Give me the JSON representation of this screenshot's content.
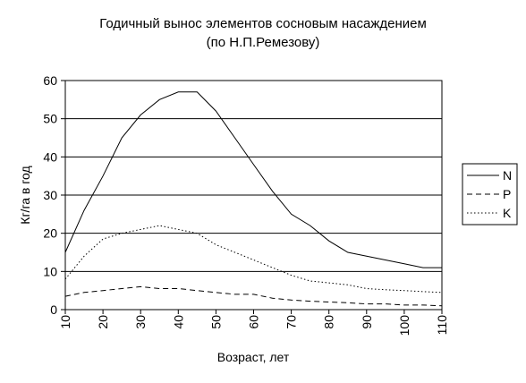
{
  "chart_data": {
    "type": "line",
    "title": "Годичный вынос элементов сосновым насаждением",
    "subtitle": "(по Н.П.Ремезову)",
    "xlabel": "Возраст, лет",
    "ylabel": "Кг/га в год",
    "xlim": [
      10,
      110
    ],
    "ylim": [
      0,
      60
    ],
    "x_ticks": [
      "10",
      "20",
      "30",
      "40",
      "50",
      "60",
      "70",
      "80",
      "90",
      "100",
      "110"
    ],
    "y_ticks": [
      "0",
      "10",
      "20",
      "30",
      "40",
      "50",
      "60"
    ],
    "grid": "horizontal",
    "legend_position": "right",
    "x": [
      10,
      15,
      20,
      25,
      30,
      35,
      40,
      45,
      50,
      55,
      60,
      65,
      70,
      75,
      80,
      85,
      90,
      95,
      100,
      105,
      110
    ],
    "series": [
      {
        "name": "N",
        "style": "solid",
        "color": "#000000",
        "values": [
          15,
          26,
          35,
          45,
          51,
          55,
          57,
          57,
          52,
          45,
          38,
          31,
          25,
          22,
          18,
          15,
          14,
          13,
          12,
          11,
          11
        ]
      },
      {
        "name": "P",
        "style": "dashed",
        "color": "#000000",
        "values": [
          3.5,
          4.5,
          5,
          5.5,
          6,
          5.5,
          5.5,
          5,
          4.5,
          4,
          4,
          3,
          2.5,
          2.2,
          2,
          1.8,
          1.5,
          1.5,
          1.2,
          1.2,
          1
        ]
      },
      {
        "name": "K",
        "style": "dotted",
        "color": "#000000",
        "values": [
          8,
          14,
          18.5,
          20,
          21,
          22,
          21,
          20,
          17,
          15,
          13,
          11,
          9,
          7.5,
          7,
          6.5,
          5.5,
          5.2,
          5,
          4.7,
          4.5
        ]
      }
    ]
  }
}
